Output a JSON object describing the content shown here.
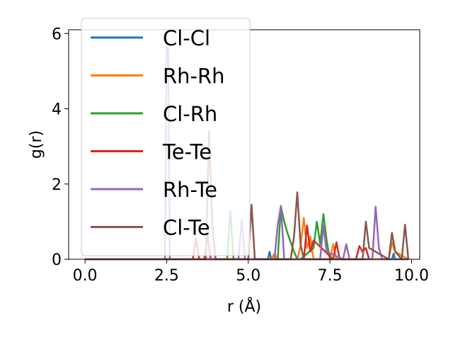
{
  "chart_data": {
    "type": "line",
    "xlabel": "r (Å)",
    "ylabel": "g(r)",
    "xlim": [
      -0.5,
      10.25
    ],
    "ylim": [
      0,
      6.1
    ],
    "xticks": [
      "0.0",
      "2.5",
      "5.0",
      "7.5",
      "10.0"
    ],
    "yticks": [
      "0",
      "2",
      "4",
      "6"
    ],
    "legend_position": "upper-left",
    "grid": false,
    "series": [
      {
        "name": "Cl-Cl",
        "color": "#1f77b4",
        "x": [
          0,
          5.6,
          5.65,
          5.7,
          9.4,
          9.45,
          9.5,
          9.9
        ],
        "y": [
          0,
          0,
          0.2,
          0,
          0,
          0.15,
          0,
          0
        ]
      },
      {
        "name": "Rh-Rh",
        "color": "#ff7f0e",
        "x": [
          0,
          5.7,
          5.8,
          5.9,
          6.5,
          6.6,
          6.7,
          6.8,
          6.9,
          7.0,
          7.5,
          7.6,
          7.7,
          9.3,
          9.4,
          9.5,
          9.9
        ],
        "y": [
          0,
          0,
          0.15,
          0,
          0,
          0.35,
          1.1,
          0.3,
          0.6,
          0,
          0,
          0.4,
          0,
          0,
          0.45,
          0.2,
          0
        ]
      },
      {
        "name": "Cl-Rh",
        "color": "#2ca02c",
        "x": [
          0,
          4.35,
          4.45,
          4.55,
          5.9,
          6.0,
          6.1,
          6.2,
          6.4,
          6.5,
          6.6,
          7.0,
          7.1,
          7.2,
          7.3,
          7.4,
          7.5
        ],
        "y": [
          0,
          0,
          1.28,
          0,
          0,
          1.4,
          1.0,
          0.7,
          0.2,
          0,
          0,
          0.3,
          1.0,
          0.4,
          1.2,
          0.5,
          0
        ]
      },
      {
        "name": "Te-Te",
        "color": "#d62728",
        "x": [
          0,
          3.3,
          3.4,
          3.5,
          3.65,
          3.75,
          3.85,
          6.7,
          6.8,
          6.9,
          7.0,
          7.6,
          7.7,
          7.8,
          8.3,
          8.4,
          8.5,
          8.6,
          8.7
        ],
        "y": [
          0,
          0,
          0.55,
          0,
          0,
          0.6,
          0,
          0,
          0.9,
          0.2,
          0.5,
          0,
          0.45,
          0,
          0,
          0.35,
          0.2,
          0.3,
          0
        ]
      },
      {
        "name": "Rh-Te",
        "color": "#9467bd",
        "x": [
          0,
          2.45,
          2.5,
          2.55,
          2.6,
          4.7,
          4.8,
          4.9,
          5.8,
          5.9,
          6.0,
          6.1,
          7.2,
          7.3,
          7.4,
          7.9,
          8.0,
          8.1,
          8.8,
          8.9,
          9.0,
          9.1,
          9.9
        ],
        "y": [
          0,
          0,
          5.8,
          5.5,
          0,
          0,
          1.05,
          0,
          0,
          0.9,
          1.42,
          0,
          0,
          0.9,
          0.2,
          0,
          0.4,
          0,
          0,
          1.4,
          0.3,
          0,
          0
        ]
      },
      {
        "name": "Cl-Te",
        "color": "#8c564b",
        "x": [
          0,
          3.7,
          3.8,
          3.9,
          4.0,
          5.0,
          5.1,
          5.2,
          6.3,
          6.4,
          6.5,
          6.6,
          6.7,
          8.5,
          8.6,
          8.7,
          9.3,
          9.4,
          9.5,
          9.7,
          9.8,
          9.9
        ],
        "y": [
          0,
          0,
          3.4,
          0.9,
          0,
          0,
          1.45,
          0,
          0,
          0.6,
          1.78,
          0.4,
          0,
          0,
          1.0,
          0.3,
          0,
          0.7,
          0.2,
          0,
          0.92,
          0
        ]
      }
    ]
  }
}
